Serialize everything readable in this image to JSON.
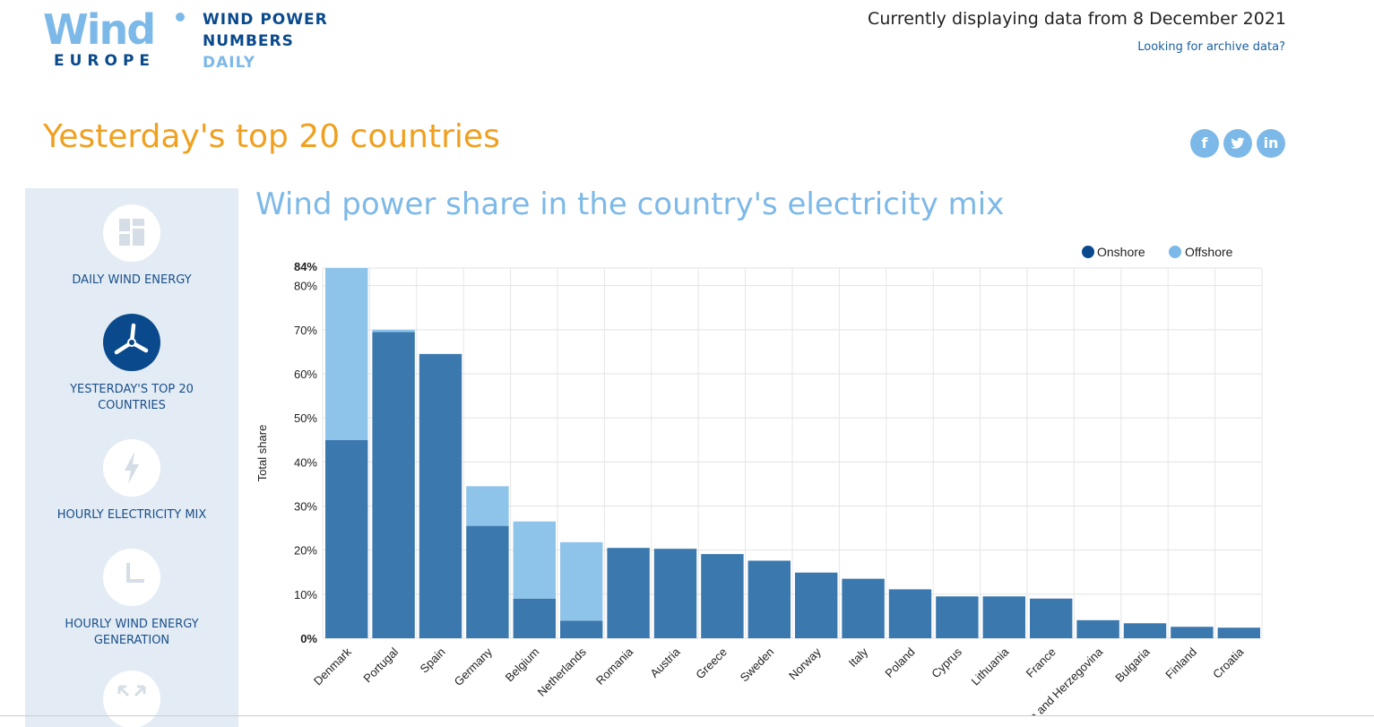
{
  "logo": {
    "wind": "Wind",
    "europe": "EUROPE",
    "line1": "WIND POWER",
    "line2": "NUMBERS",
    "line3": "DAILY"
  },
  "header": {
    "date_text": "Currently displaying data from 8 December 2021",
    "archive_link": "Looking for archive data?"
  },
  "page_title": "Yesterday's top 20 countries",
  "social": [
    {
      "label": "f",
      "icon": "facebook-icon"
    },
    {
      "label": "t",
      "icon": "twitter-icon"
    },
    {
      "label": "in",
      "icon": "linkedin-icon"
    }
  ],
  "colors": {
    "onshore": "#3a78ae",
    "offshore": "#8fc4ea",
    "title_orange": "#f0a020",
    "accent_light": "#7db9e8",
    "navy": "#0a4a8c"
  },
  "sidebar": {
    "items": [
      {
        "label": "DAILY WIND ENERGY",
        "icon": "dashboard-icon",
        "active": false
      },
      {
        "label": "YESTERDAY'S TOP 20 COUNTRIES",
        "icon": "wind-turbine-icon",
        "active": true
      },
      {
        "label": "HOURLY ELECTRICITY MIX",
        "icon": "lightning-icon",
        "active": false
      },
      {
        "label": "HOURLY WIND ENERGY GENERATION",
        "icon": "clock-icon",
        "active": false
      },
      {
        "label": "",
        "icon": "expand-icon",
        "active": false
      }
    ]
  },
  "chart_data": {
    "type": "bar",
    "stacked": true,
    "title": "Wind power share in the country's electricity mix",
    "ylabel": "Total share",
    "ylim": [
      0,
      84
    ],
    "yticks": [
      "0%",
      "10%",
      "20%",
      "30%",
      "40%",
      "50%",
      "60%",
      "70%",
      "80%",
      "84%"
    ],
    "legend": {
      "position": "top-right"
    },
    "categories": [
      "Denmark",
      "Portugal",
      "Spain",
      "Germany",
      "Belgium",
      "Netherlands",
      "Romania",
      "Austria",
      "Greece",
      "Sweden",
      "Norway",
      "Italy",
      "Poland",
      "Cyprus",
      "Lithuania",
      "France",
      "Bosnia and Herzegovina",
      "Bulgaria",
      "Finland",
      "Croatia"
    ],
    "series": [
      {
        "name": "Onshore",
        "values": [
          45,
          69.5,
          64.5,
          25.5,
          9,
          4,
          20.5,
          20.3,
          19.1,
          17.6,
          14.9,
          13.5,
          11.1,
          9.5,
          9.5,
          9,
          4.1,
          3.4,
          2.6,
          2.4
        ]
      },
      {
        "name": "Offshore",
        "values": [
          39,
          0.5,
          0,
          9,
          17.5,
          17.8,
          0,
          0,
          0,
          0,
          0,
          0,
          0,
          0,
          0,
          0,
          0,
          0,
          0,
          0
        ]
      }
    ],
    "grid": true
  }
}
